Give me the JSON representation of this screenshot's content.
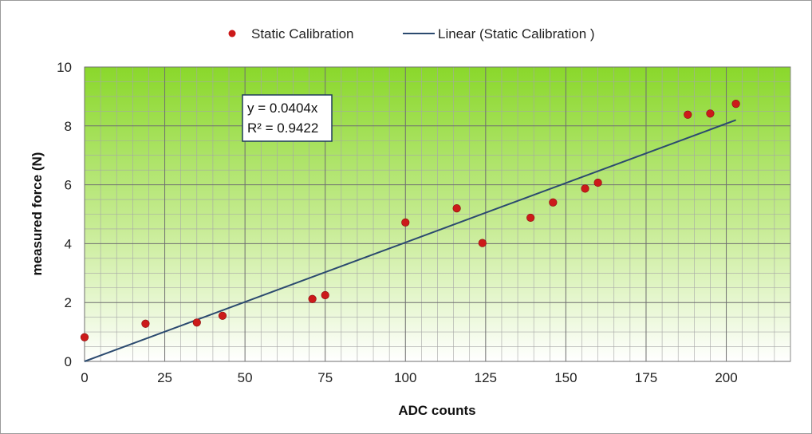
{
  "chart_data": {
    "type": "scatter",
    "title": "",
    "xlabel": "ADC counts",
    "ylabel": "measured force (N)",
    "xlim": [
      0,
      220
    ],
    "ylim": [
      0,
      10
    ],
    "xticks": [
      0,
      25,
      50,
      75,
      100,
      125,
      150,
      175,
      200
    ],
    "yticks": [
      0,
      2,
      4,
      6,
      8,
      10
    ],
    "xtick_labels": [
      "0",
      "25",
      "50",
      "75",
      "100",
      "125",
      "150",
      "175",
      "200"
    ],
    "ytick_labels": [
      "0",
      "2",
      "4",
      "6",
      "8",
      "10"
    ],
    "grid": true,
    "legend_position": "top",
    "colors": {
      "points": "#cc1a1a",
      "trendline": "#2b4a6f",
      "plot_top": "#8ad82b",
      "plot_bottom": "#ffffff",
      "grid": "#7f7f7f"
    },
    "series": [
      {
        "name": "Static Calibration",
        "kind": "scatter",
        "points": [
          {
            "x": 0,
            "y": 0.82
          },
          {
            "x": 19,
            "y": 1.28
          },
          {
            "x": 35,
            "y": 1.32
          },
          {
            "x": 43,
            "y": 1.55
          },
          {
            "x": 71,
            "y": 2.12
          },
          {
            "x": 75,
            "y": 2.25
          },
          {
            "x": 100,
            "y": 4.72
          },
          {
            "x": 116,
            "y": 5.2
          },
          {
            "x": 124,
            "y": 4.02
          },
          {
            "x": 139,
            "y": 4.88
          },
          {
            "x": 146,
            "y": 5.4
          },
          {
            "x": 156,
            "y": 5.87
          },
          {
            "x": 160,
            "y": 6.07
          },
          {
            "x": 188,
            "y": 8.38
          },
          {
            "x": 195,
            "y": 8.42
          },
          {
            "x": 203,
            "y": 8.75
          }
        ]
      },
      {
        "name": "Linear (Static Calibration )",
        "kind": "line",
        "points": [
          {
            "x": 0,
            "y": 0
          },
          {
            "x": 203,
            "y": 8.2
          }
        ]
      }
    ],
    "annotations": {
      "equation": "y = 0.0404x",
      "r_squared": "R² = 0.9422"
    }
  }
}
